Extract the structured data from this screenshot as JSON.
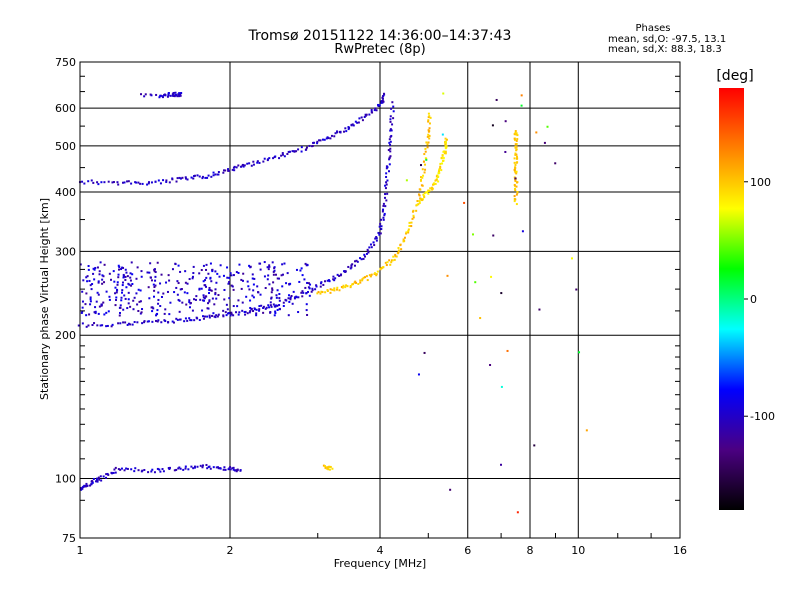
{
  "chart_data": {
    "type": "scatter",
    "title": "Tromsø 20151122 14:36:00–14:37:43",
    "subtitle": "RwPretec (8p)",
    "xlabel": "Frequency [MHz]",
    "ylabel": "Stationary phase Virtual Height [km]",
    "x_scale": "log",
    "y_scale": "log",
    "xlim": [
      1,
      16
    ],
    "ylim": [
      75,
      750
    ],
    "x_ticks": [
      1,
      2,
      4,
      6,
      8,
      10,
      16
    ],
    "y_ticks": [
      75,
      100,
      200,
      300,
      400,
      500,
      600,
      750
    ],
    "grid": true,
    "info": {
      "heading": "Phases",
      "line1": "mean, sd,O: -97.5, 13.1",
      "line2": "mean, sd,X:  88.3, 18.3"
    },
    "colorbar": {
      "label": "[deg]",
      "range": [
        -180,
        180
      ],
      "ticks": [
        100,
        0,
        -100
      ],
      "colors": [
        "#000000",
        "#4b0082",
        "#0000ff",
        "#00ffff",
        "#00ff00",
        "#ffff00",
        "#ff8000",
        "#ff0000"
      ]
    },
    "traces": [
      {
        "name_hint": "O-mode F2",
        "phase": -100,
        "points": [
          [
            1.0,
            420
          ],
          [
            1.2,
            418
          ],
          [
            1.4,
            418
          ],
          [
            1.6,
            425
          ],
          [
            1.8,
            432
          ],
          [
            2.0,
            445
          ],
          [
            2.2,
            458
          ],
          [
            2.5,
            475
          ],
          [
            2.8,
            492
          ],
          [
            3.1,
            515
          ],
          [
            3.4,
            540
          ],
          [
            3.7,
            570
          ],
          [
            4.0,
            610
          ],
          [
            4.1,
            640
          ]
        ]
      },
      {
        "name_hint": "O-mode F1/F2 low",
        "phase": -100,
        "points": [
          [
            1.0,
            210
          ],
          [
            1.2,
            211
          ],
          [
            1.4,
            213
          ],
          [
            1.6,
            215
          ],
          [
            1.8,
            218
          ],
          [
            2.0,
            221
          ],
          [
            2.3,
            227
          ],
          [
            2.6,
            236
          ],
          [
            2.9,
            249
          ],
          [
            3.2,
            262
          ],
          [
            3.5,
            278
          ],
          [
            3.8,
            300
          ],
          [
            4.0,
            330
          ],
          [
            4.1,
            380
          ],
          [
            4.15,
            450
          ],
          [
            4.2,
            520
          ],
          [
            4.25,
            620
          ]
        ]
      },
      {
        "name_hint": "X-mode",
        "phase": 100,
        "points": [
          [
            3.0,
            245
          ],
          [
            3.3,
            250
          ],
          [
            3.6,
            258
          ],
          [
            3.9,
            268
          ],
          [
            4.2,
            285
          ],
          [
            4.4,
            305
          ],
          [
            4.6,
            340
          ],
          [
            4.8,
            390
          ],
          [
            4.9,
            450
          ],
          [
            5.0,
            520
          ],
          [
            5.05,
            590
          ]
        ]
      },
      {
        "name_hint": "X-mode outer",
        "phase": 88,
        "points": [
          [
            4.8,
            380
          ],
          [
            5.0,
            400
          ],
          [
            5.2,
            420
          ],
          [
            5.3,
            450
          ],
          [
            5.4,
            490
          ],
          [
            5.45,
            520
          ]
        ]
      },
      {
        "name_hint": "E-region",
        "phase": -100,
        "points": [
          [
            1.0,
            95
          ],
          [
            1.05,
            98
          ],
          [
            1.1,
            100
          ],
          [
            1.2,
            105
          ],
          [
            1.4,
            104
          ],
          [
            1.6,
            105
          ],
          [
            1.8,
            106
          ],
          [
            2.0,
            105
          ],
          [
            2.1,
            104
          ]
        ]
      },
      {
        "name_hint": "E-region X",
        "phase": 100,
        "points": [
          [
            3.1,
            106
          ],
          [
            3.2,
            105
          ]
        ]
      },
      {
        "name_hint": "cluster 1.5",
        "phase": -100,
        "points": [
          [
            1.45,
            638
          ],
          [
            1.55,
            640
          ],
          [
            1.6,
            642
          ],
          [
            1.3,
            636
          ]
        ]
      },
      {
        "name_hint": "X far",
        "phase": 100,
        "points": [
          [
            7.5,
            380
          ],
          [
            7.5,
            420
          ],
          [
            7.5,
            460
          ],
          [
            7.5,
            500
          ],
          [
            7.5,
            540
          ]
        ]
      }
    ]
  }
}
